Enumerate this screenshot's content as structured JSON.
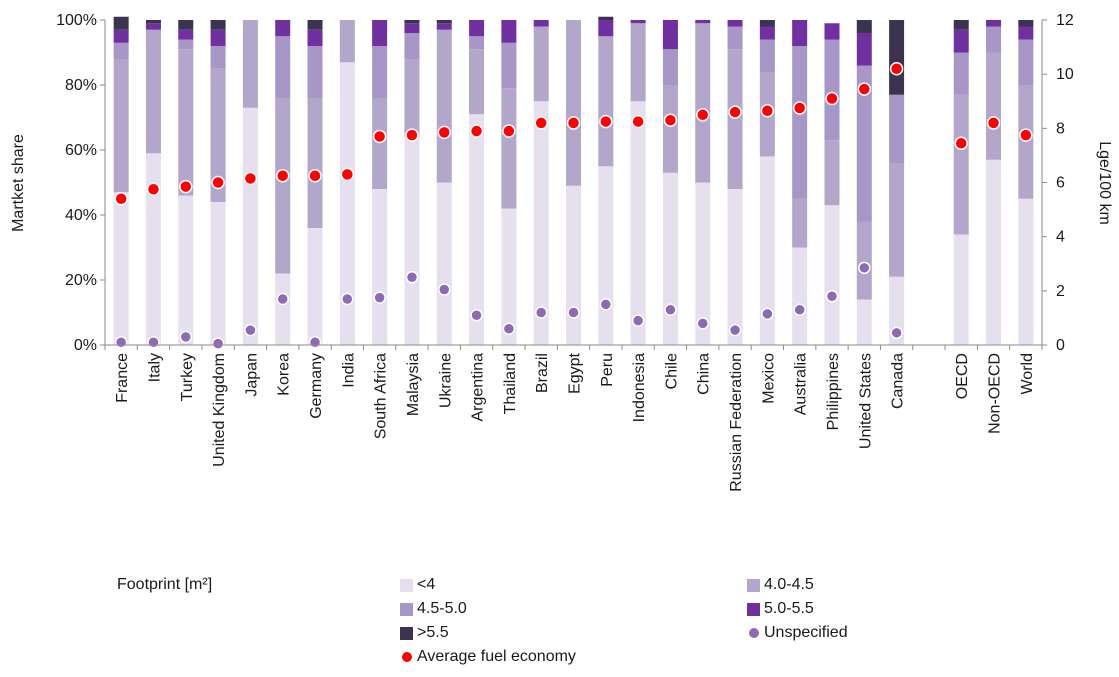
{
  "legend": {
    "title": "Footprint [m²]",
    "items": [
      {
        "label": "<4",
        "color": "#e6e0ee",
        "kind": "square"
      },
      {
        "label": "4.0-4.5",
        "color": "#b3a6cb",
        "kind": "square"
      },
      {
        "label": "4.5-5.0",
        "color": "#a796c6",
        "kind": "square"
      },
      {
        "label": "5.0-5.5",
        "color": "#7030a0",
        "kind": "square"
      },
      {
        "label": ">5.5",
        "color": "#3b3350",
        "kind": "square"
      },
      {
        "label": "Unspecified",
        "color": "#8e6ab5",
        "kind": "dot"
      },
      {
        "label": "Average fuel economy",
        "color": "#ff0000",
        "kind": "dot"
      }
    ]
  },
  "chart_data": {
    "type": "bar",
    "stacked": true,
    "ylabel": "Martket share",
    "y2label": "Lge/100 km",
    "ylim": [
      0,
      100
    ],
    "y2lim": [
      0,
      12
    ],
    "yticks": [
      "0%",
      "20%",
      "40%",
      "60%",
      "80%",
      "100%"
    ],
    "y2ticks": [
      "0",
      "2",
      "4",
      "6",
      "8",
      "10",
      "12"
    ],
    "categories": [
      "France",
      "Italy",
      "Turkey",
      "United Kingdom",
      "Japan",
      "Korea",
      "Germany",
      "India",
      "South Africa",
      "Malaysia",
      "Ukraine",
      "Argentina",
      "Thailand",
      "Brazil",
      "Egypt",
      "Peru",
      "Indonesia",
      "Chile",
      "China",
      "Russian Federation",
      "Mexico",
      "Australia",
      "Philippines",
      "United States",
      "Canada",
      "",
      "OECD",
      "Non-OECD",
      "World"
    ],
    "series": [
      {
        "name": "<4",
        "color": "#e6e0ee",
        "values": [
          47,
          59,
          46,
          44,
          73,
          22,
          36,
          87,
          48,
          64,
          50,
          71,
          42,
          75,
          49,
          55,
          75,
          53,
          50,
          48,
          58,
          30,
          43,
          14,
          21,
          null,
          34,
          57,
          45
        ]
      },
      {
        "name": "4.0-4.5",
        "color": "#b3a6cb",
        "values": [
          41,
          38,
          45,
          41,
          27,
          54,
          40,
          13,
          28,
          24,
          47,
          20,
          37,
          23,
          51,
          40,
          24,
          27,
          49,
          43,
          26,
          15,
          20,
          24,
          35,
          null,
          43,
          33,
          35
        ]
      },
      {
        "name": "4.5-5.0",
        "color": "#a796c6",
        "values": [
          5,
          0,
          3,
          7,
          0,
          19,
          16,
          0,
          16,
          8,
          0,
          4,
          14,
          0,
          0,
          0,
          0,
          11,
          0,
          7,
          10,
          47,
          31,
          48,
          21,
          null,
          13,
          8,
          14
        ]
      },
      {
        "name": "5.0-5.5",
        "color": "#7030a0",
        "values": [
          4,
          2,
          3,
          5,
          0,
          5,
          5,
          0,
          8,
          3,
          2,
          5,
          7,
          2,
          0,
          5,
          1,
          9,
          1,
          2,
          4,
          8,
          5,
          10,
          0,
          null,
          7,
          2,
          4
        ]
      },
      {
        "name": ">5.5",
        "color": "#3b3350",
        "values": [
          4,
          1,
          3,
          3,
          0,
          0,
          3,
          0,
          0,
          1,
          1,
          0,
          0,
          0,
          0,
          1,
          0,
          0,
          0,
          0,
          2,
          0,
          0,
          4,
          23,
          null,
          3,
          0,
          2
        ]
      },
      {
        "name": "Unspecified",
        "color": "#8e6ab5",
        "axis": "right",
        "kind": "dot",
        "values": [
          0.1,
          0.1,
          0.3,
          0.05,
          0.55,
          1.7,
          0.1,
          1.7,
          1.75,
          2.5,
          2.05,
          1.1,
          0.6,
          1.2,
          1.2,
          1.5,
          0.9,
          1.3,
          0.8,
          0.55,
          1.15,
          1.3,
          1.8,
          2.85,
          0.45,
          null,
          null,
          null,
          null
        ]
      },
      {
        "name": "Average fuel economy",
        "color": "#ff0000",
        "axis": "right",
        "kind": "dot",
        "values": [
          5.4,
          5.75,
          5.85,
          6.0,
          6.15,
          6.25,
          6.25,
          6.3,
          7.7,
          7.75,
          7.85,
          7.9,
          7.9,
          8.2,
          8.2,
          8.25,
          8.25,
          8.3,
          8.5,
          8.6,
          8.65,
          8.75,
          9.1,
          9.45,
          10.2,
          null,
          7.45,
          8.2,
          7.75
        ]
      }
    ]
  }
}
